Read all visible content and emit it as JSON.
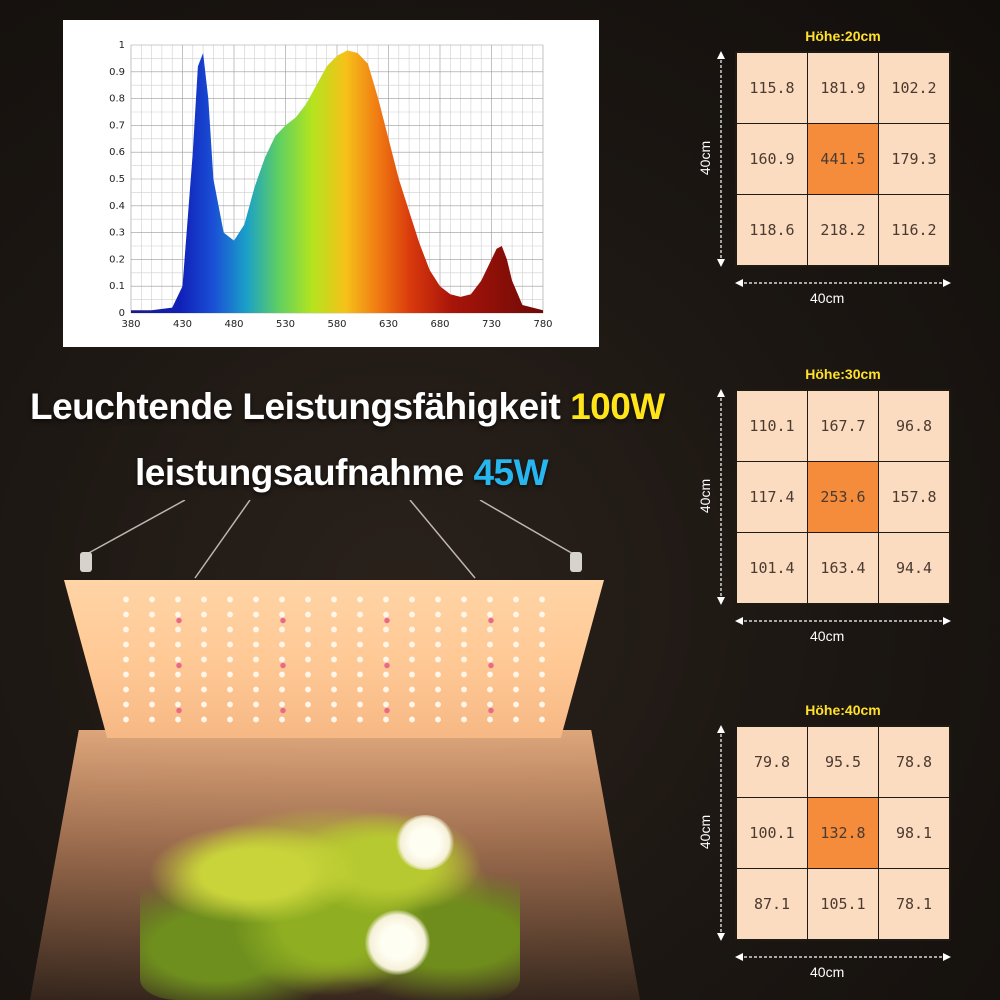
{
  "spectrum": {
    "y_ticks": [
      "0",
      "0.1",
      "0.2",
      "0.3",
      "0.4",
      "0.5",
      "0.6",
      "0.7",
      "0.8",
      "0.9",
      "1"
    ],
    "x_ticks": [
      "380",
      "430",
      "480",
      "530",
      "580",
      "630",
      "680",
      "730",
      "780"
    ],
    "chart_data": {
      "type": "area",
      "x": [
        380,
        400,
        420,
        430,
        440,
        445,
        450,
        455,
        460,
        470,
        480,
        490,
        500,
        510,
        520,
        530,
        540,
        550,
        560,
        570,
        580,
        590,
        600,
        610,
        620,
        630,
        640,
        650,
        660,
        670,
        680,
        690,
        700,
        710,
        720,
        730,
        735,
        740,
        745,
        750,
        760,
        780
      ],
      "y": [
        0.01,
        0.01,
        0.02,
        0.1,
        0.6,
        0.92,
        0.97,
        0.8,
        0.5,
        0.3,
        0.27,
        0.33,
        0.47,
        0.58,
        0.66,
        0.7,
        0.73,
        0.78,
        0.85,
        0.92,
        0.96,
        0.98,
        0.97,
        0.93,
        0.8,
        0.65,
        0.5,
        0.38,
        0.26,
        0.16,
        0.1,
        0.07,
        0.06,
        0.07,
        0.12,
        0.2,
        0.24,
        0.25,
        0.2,
        0.12,
        0.03,
        0.01
      ],
      "xlim": [
        380,
        780
      ],
      "ylim": [
        0,
        1
      ],
      "grid": true
    }
  },
  "headline1": {
    "text": "Leuchtende Leistungsfähigkeit",
    "value": "100W"
  },
  "headline2": {
    "text": "leistungsaufnahme",
    "value": "45W"
  },
  "grids": [
    {
      "title": "Höhe:20cm",
      "width_label": "40cm",
      "height_label": "40cm",
      "values": [
        "115.8",
        "181.9",
        "102.2",
        "160.9",
        "441.5",
        "179.3",
        "118.6",
        "218.2",
        "116.2"
      ]
    },
    {
      "title": "Höhe:30cm",
      "width_label": "40cm",
      "height_label": "40cm",
      "values": [
        "110.1",
        "167.7",
        "96.8",
        "117.4",
        "253.6",
        "157.8",
        "101.4",
        "163.4",
        "94.4"
      ]
    },
    {
      "title": "Höhe:40cm",
      "width_label": "40cm",
      "height_label": "40cm",
      "values": [
        "79.8",
        "95.5",
        "78.8",
        "100.1",
        "132.8",
        "98.1",
        "87.1",
        "105.1",
        "78.1"
      ]
    }
  ]
}
